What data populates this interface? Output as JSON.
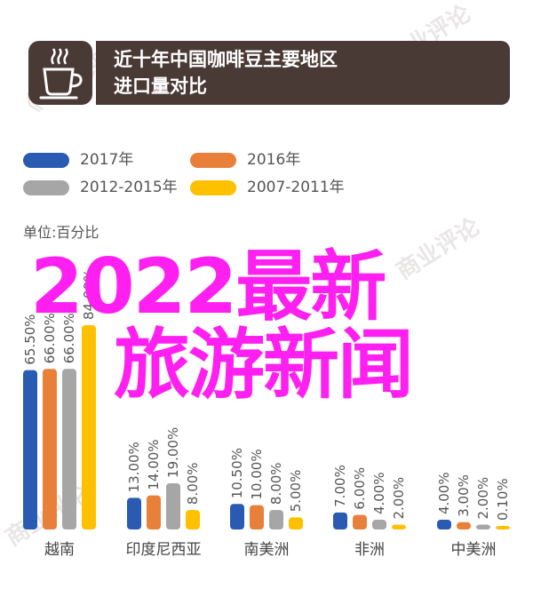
{
  "header": {
    "title_line1": "近十年中国咖啡豆主要地区",
    "title_line2": "进口量对比",
    "icon": "coffee-cup-icon"
  },
  "legend": [
    {
      "label": "2017年",
      "color": "#2a5bb2"
    },
    {
      "label": "2016年",
      "color": "#e8803a"
    },
    {
      "label": "2012-2015年",
      "color": "#a6a6a6"
    },
    {
      "label": "2007-2011年",
      "color": "#ffc000"
    }
  ],
  "unit_label": "单位:百分比",
  "chart_data": {
    "type": "bar",
    "categories": [
      "越南",
      "印度尼西亚",
      "南美洲",
      "非洲",
      "中美洲"
    ],
    "series": [
      {
        "name": "2017年",
        "color": "#2a5bb2",
        "values": [
          65.5,
          13.0,
          10.5,
          7.0,
          4.0
        ],
        "labels": [
          "65.50%",
          "13.00%",
          "10.50%",
          "7.00%",
          "4.00%"
        ]
      },
      {
        "name": "2016年",
        "color": "#e8803a",
        "values": [
          66.0,
          14.0,
          10.0,
          6.0,
          3.0
        ],
        "labels": [
          "66.00%",
          "14.00%",
          "10.00%",
          "6.00%",
          "3.00%"
        ]
      },
      {
        "name": "2012-2015年",
        "color": "#a6a6a6",
        "values": [
          66.0,
          19.0,
          8.0,
          4.0,
          2.0
        ],
        "labels": [
          "66.00%",
          "19.00%",
          "8.00%",
          "4.00%",
          "2.00%"
        ]
      },
      {
        "name": "2007-2011年",
        "color": "#ffc000",
        "values": [
          84.0,
          8.0,
          5.0,
          2.0,
          0.1
        ],
        "labels": [
          "84.00%",
          "8.00%",
          "5.00%",
          "2.00%",
          "0.10%"
        ]
      }
    ],
    "ylim": [
      0,
      90
    ]
  },
  "overlay": {
    "line1": "2022最新",
    "line2": "旅游新闻",
    "color": "#ff1ff0"
  }
}
